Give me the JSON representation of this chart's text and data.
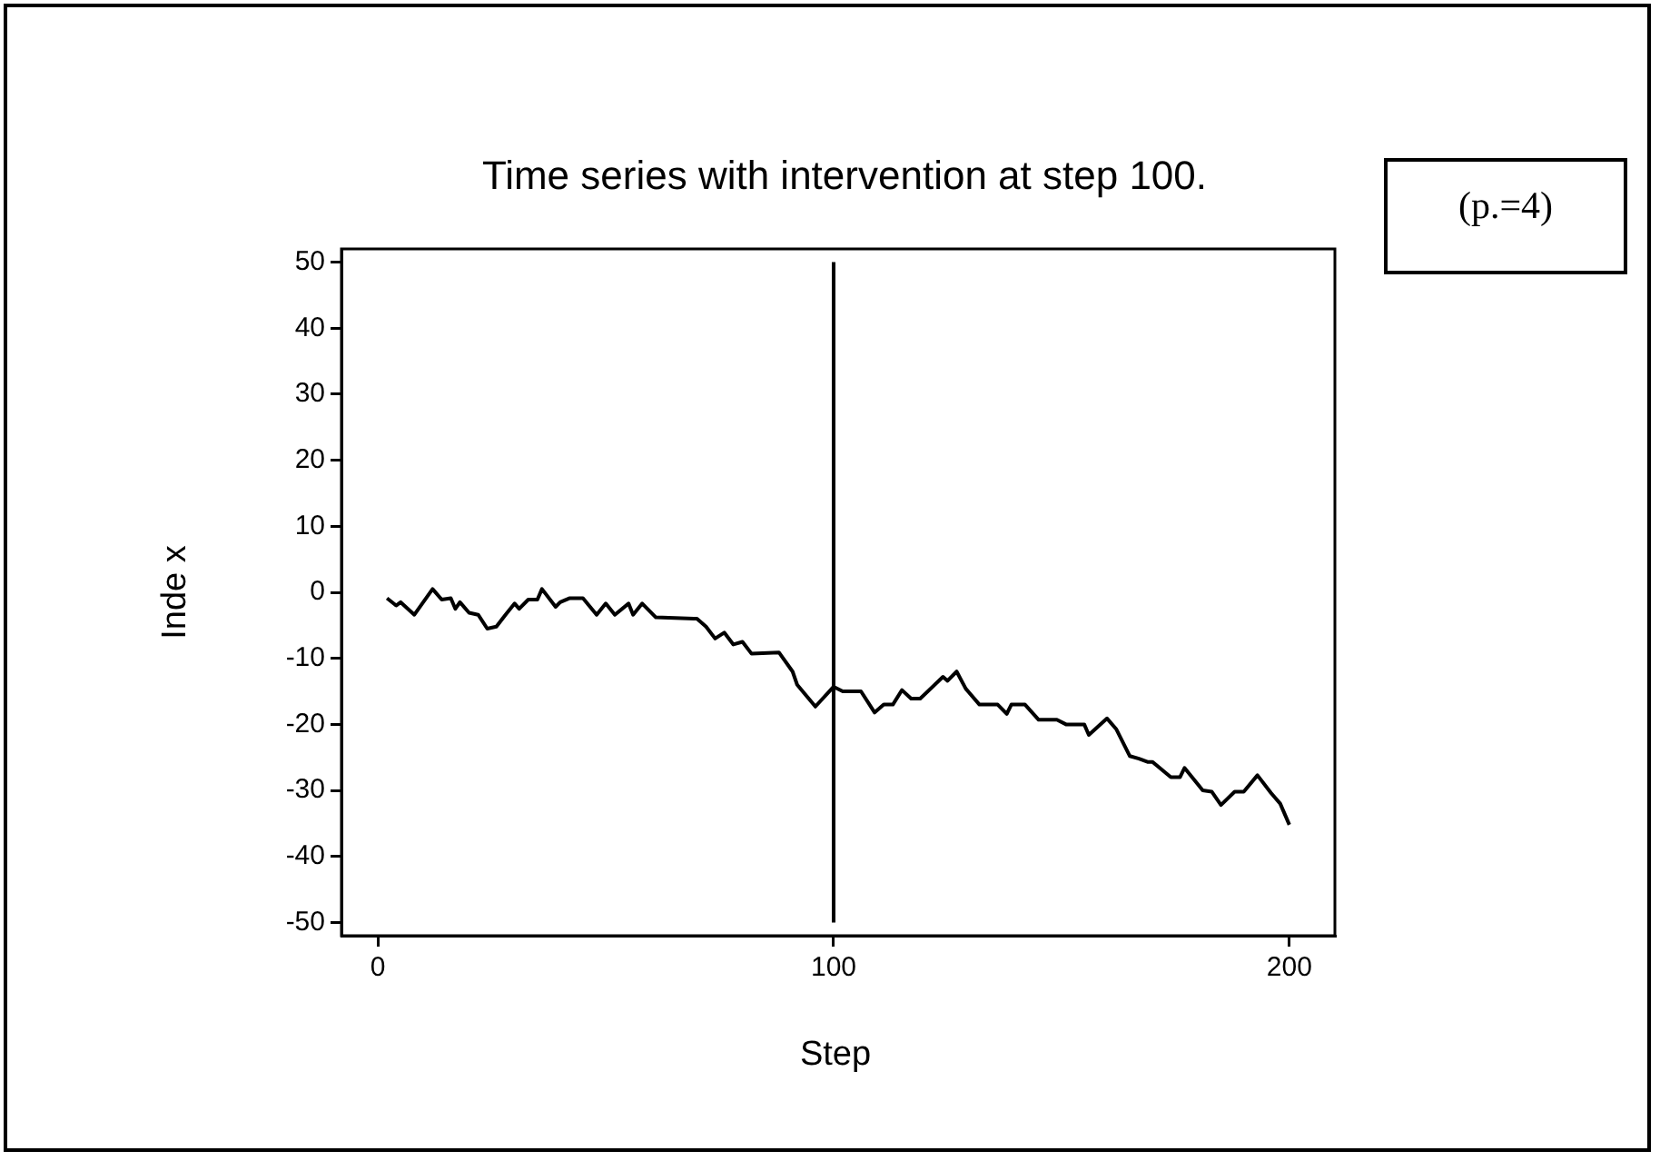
{
  "chart_data": {
    "type": "line",
    "title": "Time series with intervention at step 100.",
    "xlabel": "Step",
    "ylabel": "Inde x",
    "annotations": [
      "(p.=4)"
    ],
    "x": [
      2,
      4,
      5,
      8,
      12,
      14,
      16,
      17,
      18,
      20,
      22,
      24,
      26,
      28,
      30,
      31,
      33,
      35,
      36,
      39,
      40,
      42,
      45,
      48,
      50,
      52,
      55,
      56,
      58,
      61,
      70,
      72,
      74,
      76,
      78,
      80,
      82,
      88,
      91,
      92,
      96,
      100,
      102,
      106,
      109,
      111,
      113,
      115,
      117,
      119,
      124,
      125,
      127,
      129,
      132,
      136,
      138,
      139,
      142,
      145,
      149,
      151,
      155,
      156,
      160,
      162,
      165,
      167,
      169,
      170,
      174,
      176,
      177,
      181,
      183,
      185,
      188,
      190,
      193,
      196,
      198,
      200
    ],
    "series": [
      {
        "color": "#000000",
        "values": [
          -0.9,
          -2,
          -1.5,
          -3.4,
          0.5,
          -1.1,
          -0.9,
          -2.5,
          -1.5,
          -3.1,
          -3.4,
          -5.5,
          -5.2,
          -3.4,
          -1.7,
          -2.5,
          -1.1,
          -1.1,
          0.5,
          -2.2,
          -1.5,
          -0.9,
          -0.9,
          -3.4,
          -1.7,
          -3.4,
          -1.7,
          -3.4,
          -1.7,
          -3.8,
          -4,
          -5.2,
          -7,
          -6.1,
          -7.9,
          -7.5,
          -9.3,
          -9.1,
          -12,
          -14,
          -17.3,
          -14.3,
          -15,
          -15,
          -18.2,
          -17,
          -17,
          -14.8,
          -16.1,
          -16.1,
          -12.8,
          -13.4,
          -12,
          -14.6,
          -17,
          -17,
          -18.4,
          -17,
          -17,
          -19.3,
          -19.3,
          -20,
          -20,
          -21.6,
          -19.1,
          -20.7,
          -24.8,
          -25.2,
          -25.7,
          -25.7,
          -28,
          -28,
          -26.6,
          -30,
          -30.2,
          -32.2,
          -30.2,
          -30.2,
          -27.7,
          -30.4,
          -32,
          -35.2
        ]
      }
    ],
    "xlim": [
      -8,
      210
    ],
    "xticks": [
      0,
      100,
      200
    ],
    "ylim": [
      -52,
      52
    ],
    "yticks": [
      -50,
      -40,
      -30,
      -20,
      -10,
      0,
      10,
      20,
      30,
      40,
      50
    ],
    "ref_lines": [
      {
        "axis": "x",
        "value": 100,
        "color": "#000000"
      }
    ],
    "grid": false,
    "legend": false,
    "marker": "none",
    "line_style": "solid"
  }
}
